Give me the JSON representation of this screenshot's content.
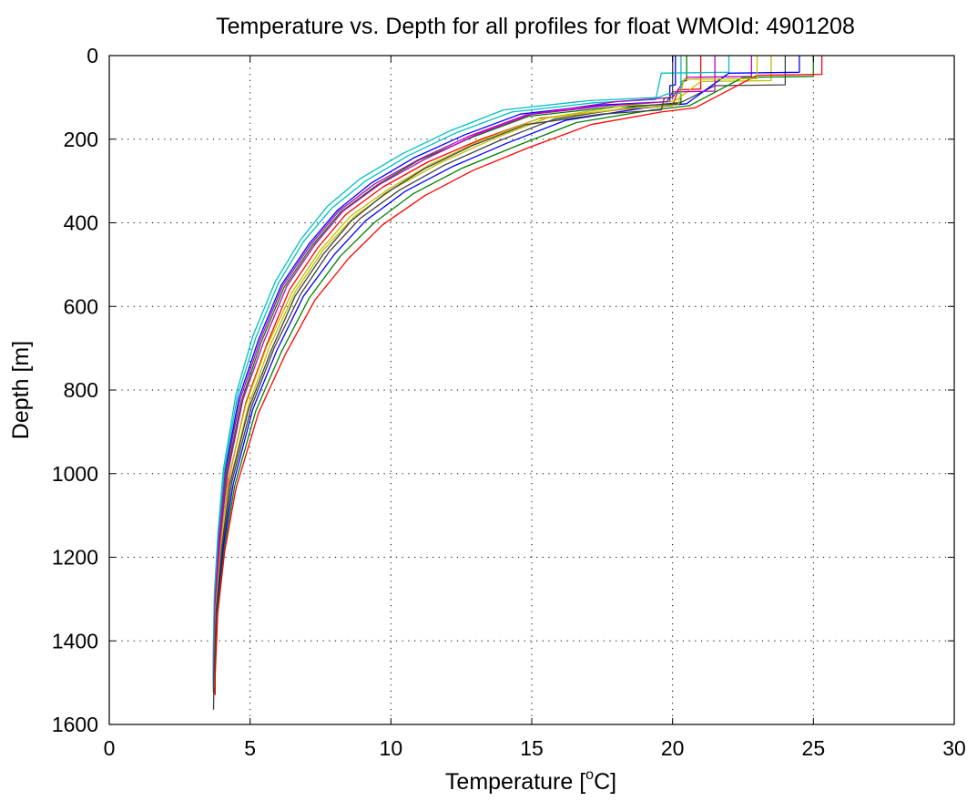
{
  "chart_data": {
    "type": "line",
    "title": "Temperature vs. Depth for all profiles for float WMOId: 4901208",
    "xlabel": "Temperature [",
    "xlabel_sup": "o",
    "xlabel_tail": "C]",
    "ylabel": "Depth [m]",
    "xlim": [
      0,
      30
    ],
    "ylim": [
      0,
      1600
    ],
    "y_reversed": true,
    "grid": true,
    "legend": "none",
    "xticks": [
      0,
      5,
      10,
      15,
      20,
      25,
      30
    ],
    "yticks": [
      0,
      200,
      400,
      600,
      800,
      1000,
      1200,
      1400,
      1600
    ],
    "series_colors": [
      "#0000ff",
      "#008000",
      "#ff0000",
      "#00bfbf",
      "#bf00bf",
      "#bfbf00",
      "#404040"
    ],
    "series": [
      {
        "x": [
          20.1,
          20.1,
          19.9,
          19.9,
          17.5,
          14.6,
          12.6,
          10.8,
          9.3,
          8.1,
          7.1,
          6.1,
          5.3,
          4.6,
          4.1,
          3.9,
          3.75,
          3.7,
          3.7
        ],
        "y": [
          0,
          70,
          72,
          110,
          118,
          140,
          190,
          245,
          305,
          370,
          450,
          550,
          680,
          820,
          1000,
          1150,
          1300,
          1450,
          1520
        ]
      },
      {
        "x": [
          20.5,
          20.5,
          20.3,
          20.3,
          17.9,
          14.9,
          12.9,
          11.0,
          9.5,
          8.2,
          7.2,
          6.2,
          5.4,
          4.7,
          4.15,
          3.92,
          3.77,
          3.7,
          3.7
        ],
        "y": [
          0,
          60,
          62,
          115,
          123,
          145,
          195,
          250,
          310,
          375,
          455,
          555,
          685,
          825,
          1005,
          1155,
          1305,
          1455,
          1525
        ]
      },
      {
        "x": [
          21.0,
          21.0,
          20.2,
          20.0,
          18.3,
          15.3,
          13.2,
          11.3,
          9.7,
          8.4,
          7.4,
          6.4,
          5.6,
          4.85,
          4.25,
          3.96,
          3.78,
          3.72,
          3.72
        ],
        "y": [
          0,
          80,
          82,
          120,
          128,
          150,
          200,
          255,
          315,
          380,
          460,
          560,
          690,
          830,
          1010,
          1160,
          1310,
          1460,
          1495
        ]
      },
      {
        "x": [
          22.0,
          22.0,
          19.6,
          19.4,
          17.2,
          14.3,
          12.3,
          10.6,
          9.1,
          7.9,
          6.9,
          6.0,
          5.2,
          4.55,
          4.08,
          3.88,
          3.74,
          3.7,
          3.7
        ],
        "y": [
          0,
          40,
          42,
          105,
          113,
          135,
          185,
          240,
          300,
          365,
          445,
          545,
          675,
          815,
          995,
          1145,
          1295,
          1445,
          1500
        ]
      },
      {
        "x": [
          22.8,
          22.8,
          20.5,
          20.0,
          18.0,
          15.0,
          13.0,
          11.2,
          9.6,
          8.3,
          7.3,
          6.3,
          5.5,
          4.75,
          4.2,
          3.94,
          3.76,
          3.71,
          3.71
        ],
        "y": [
          0,
          50,
          52,
          100,
          110,
          140,
          190,
          248,
          308,
          372,
          452,
          552,
          682,
          822,
          1002,
          1152,
          1302,
          1452,
          1505
        ]
      },
      {
        "x": [
          23.5,
          23.5,
          21.0,
          20.1,
          18.5,
          15.6,
          13.6,
          11.7,
          10.1,
          8.7,
          7.6,
          6.6,
          5.7,
          4.95,
          4.3,
          4.0,
          3.8,
          3.73,
          3.73
        ],
        "y": [
          0,
          60,
          62,
          108,
          118,
          148,
          200,
          258,
          318,
          385,
          465,
          565,
          695,
          835,
          1015,
          1165,
          1315,
          1465,
          1510
        ]
      },
      {
        "x": [
          24.0,
          24.0,
          21.5,
          20.3,
          18.7,
          15.8,
          13.8,
          11.9,
          10.3,
          8.9,
          7.8,
          6.8,
          5.85,
          5.05,
          4.35,
          4.03,
          3.82,
          3.74,
          3.74
        ],
        "y": [
          0,
          70,
          72,
          112,
          122,
          152,
          205,
          262,
          322,
          390,
          470,
          570,
          700,
          840,
          1020,
          1170,
          1320,
          1470,
          1515
        ]
      },
      {
        "x": [
          24.5,
          24.5,
          22.0,
          20.5,
          19.0,
          16.2,
          14.1,
          12.2,
          10.5,
          9.1,
          8.0,
          6.9,
          5.95,
          5.1,
          4.4,
          4.05,
          3.83,
          3.75,
          3.75
        ],
        "y": [
          0,
          40,
          42,
          115,
          125,
          155,
          210,
          265,
          325,
          395,
          475,
          575,
          705,
          845,
          1025,
          1175,
          1325,
          1475,
          1520
        ]
      },
      {
        "x": [
          25.0,
          25.0,
          22.5,
          20.6,
          19.3,
          16.6,
          14.5,
          12.5,
          10.8,
          9.4,
          8.2,
          7.1,
          6.1,
          5.2,
          4.45,
          4.08,
          3.84,
          3.75,
          3.75
        ],
        "y": [
          0,
          50,
          52,
          120,
          130,
          160,
          215,
          270,
          330,
          400,
          480,
          580,
          710,
          850,
          1030,
          1180,
          1330,
          1480,
          1525
        ]
      },
      {
        "x": [
          25.3,
          25.3,
          23.0,
          20.8,
          19.6,
          17.1,
          14.9,
          12.9,
          11.2,
          9.7,
          8.5,
          7.3,
          6.25,
          5.3,
          4.5,
          4.1,
          3.85,
          3.76,
          3.76
        ],
        "y": [
          0,
          45,
          47,
          125,
          135,
          165,
          220,
          275,
          335,
          405,
          485,
          585,
          715,
          855,
          1035,
          1185,
          1335,
          1485,
          1530
        ]
      },
      {
        "x": [
          20.3,
          20.3,
          19.8,
          19.5,
          17.0,
          14.0,
          12.1,
          10.4,
          8.9,
          7.75,
          6.8,
          5.9,
          5.1,
          4.5,
          4.05,
          3.86,
          3.73,
          3.69,
          3.69
        ],
        "y": [
          0,
          90,
          92,
          100,
          108,
          130,
          180,
          235,
          295,
          360,
          440,
          540,
          670,
          810,
          990,
          1140,
          1290,
          1440,
          1500
        ]
      },
      {
        "x": [
          21.5,
          21.5,
          20.0,
          19.8,
          17.7,
          14.8,
          12.8,
          11.0,
          9.4,
          8.15,
          7.15,
          6.15,
          5.35,
          4.65,
          4.12,
          3.9,
          3.76,
          3.71,
          3.71
        ],
        "y": [
          0,
          85,
          87,
          110,
          120,
          142,
          192,
          248,
          308,
          372,
          452,
          552,
          682,
          822,
          1002,
          1152,
          1302,
          1452,
          1508
        ]
      },
      {
        "x": [
          23.0,
          23.0,
          20.4,
          20.2,
          18.2,
          15.2,
          13.2,
          11.4,
          9.9,
          8.55,
          7.5,
          6.5,
          5.6,
          4.85,
          4.22,
          3.97,
          3.79,
          3.72,
          3.72
        ],
        "y": [
          0,
          55,
          57,
          118,
          128,
          152,
          203,
          260,
          320,
          385,
          465,
          565,
          695,
          835,
          1015,
          1165,
          1315,
          1465,
          1512
        ]
      },
      {
        "x": [
          20.0,
          20.0,
          19.7,
          19.6,
          17.5,
          14.8,
          12.9,
          11.2,
          9.8,
          8.6,
          7.6,
          6.6,
          5.75,
          4.95,
          4.28,
          4.0,
          3.8,
          3.72,
          3.7
        ],
        "y": [
          0,
          100,
          102,
          130,
          140,
          165,
          215,
          270,
          330,
          395,
          475,
          575,
          705,
          845,
          1025,
          1175,
          1325,
          1475,
          1565
        ]
      }
    ]
  }
}
